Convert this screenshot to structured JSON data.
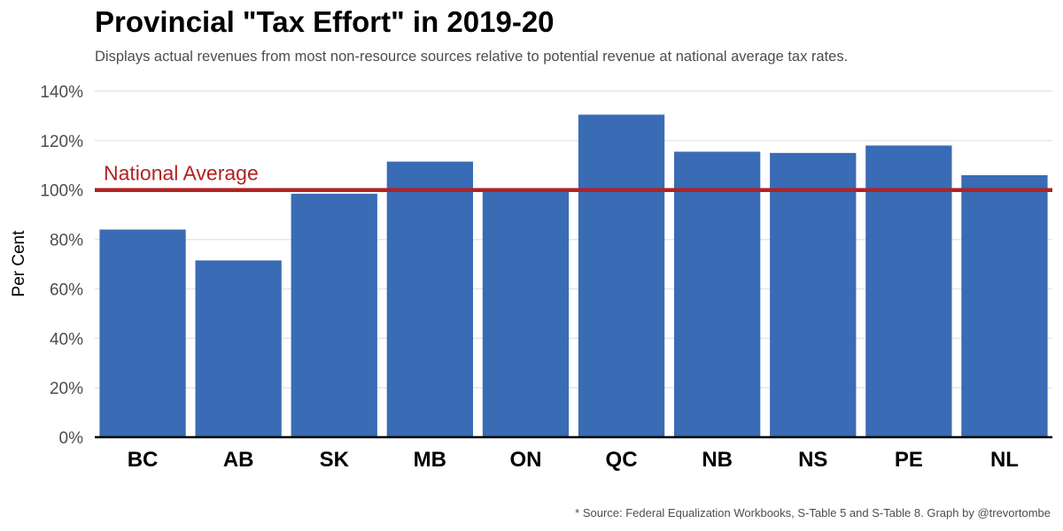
{
  "chart_data": {
    "type": "bar",
    "title": "Provincial \"Tax Effort\" in 2019-20",
    "subtitle": "Displays actual revenues from most non-resource sources relative to potential revenue at national average tax rates.",
    "caption": "* Source: Federal Equalization Workbooks, S-Table 5 and S-Table 8. Graph by @trevortombe",
    "xlabel": "",
    "ylabel": "Per Cent",
    "categories": [
      "BC",
      "AB",
      "SK",
      "MB",
      "ON",
      "QC",
      "NB",
      "NS",
      "PE",
      "NL"
    ],
    "values": [
      84,
      71.5,
      98.5,
      111.5,
      100,
      130.5,
      115.5,
      115,
      118,
      106
    ],
    "ylim": [
      0,
      140
    ],
    "yticks": [
      0,
      20,
      40,
      60,
      80,
      100,
      120,
      140
    ],
    "ytick_labels": [
      "0%",
      "20%",
      "40%",
      "60%",
      "80%",
      "100%",
      "120%",
      "140%"
    ],
    "reference_line": {
      "value": 100,
      "label": "National Average",
      "color": "#b22222"
    },
    "bar_color": "#3a6bb5",
    "grid": true,
    "legend": "none"
  }
}
